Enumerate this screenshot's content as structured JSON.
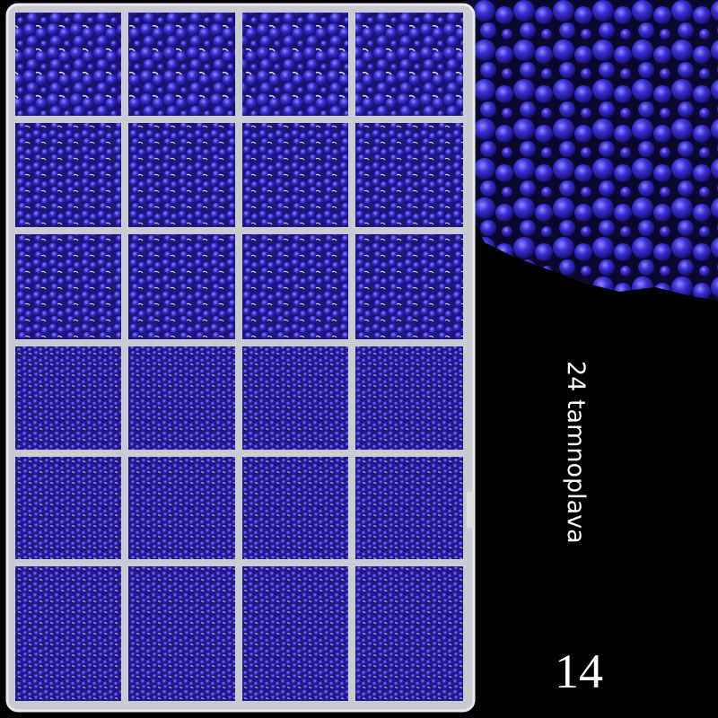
{
  "label": "24 tamnoplava",
  "number": "14"
}
